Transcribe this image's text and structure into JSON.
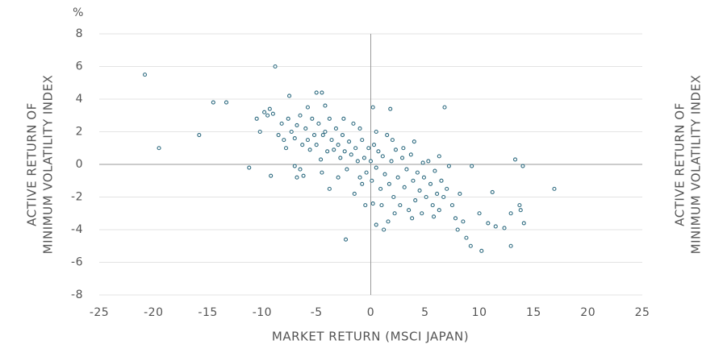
{
  "chart_data": {
    "type": "scatter",
    "unit_label": "%",
    "y_label_lines": [
      "ACTIVE RETURN OF",
      "MINIMUM VOLATILITY INDEX"
    ],
    "x_label": "MARKET RETURN (MSCI JAPAN)",
    "xlim": [
      -25,
      25
    ],
    "xticks": [
      -25,
      -20,
      -15,
      -10,
      -5,
      0,
      5,
      10,
      15,
      20,
      25
    ],
    "ylim": [
      -8,
      8
    ],
    "yticks": [
      -8,
      -6,
      -4,
      -2,
      0,
      2,
      4,
      6,
      8
    ],
    "grid": true,
    "color": "#2e6b80",
    "x": [
      -20.8,
      -19.5,
      -15.8,
      -14.5,
      -13.3,
      -11.2,
      -10.5,
      -9.3,
      -9.2,
      -9,
      -8.8,
      -7.5,
      -6.8,
      -6.2,
      -5,
      -4.5,
      -4.2,
      -3.8,
      -2.3,
      -0.5,
      0.2,
      0.5,
      1.2,
      1.8,
      6.8,
      7.2,
      9.3,
      8.5,
      8.8,
      9.2,
      10.2,
      11.2,
      12.9,
      12.9,
      13.3,
      13.7,
      14,
      14.1,
      16.9,
      10,
      10.8,
      11.5,
      12.3,
      13.8,
      7.8,
      7.5,
      8.2,
      8,
      6.3,
      6.5,
      -10.2,
      -9.8,
      -9.5,
      -8.5,
      -8.2,
      -8,
      -7.8,
      -7.6,
      -7.3,
      -7,
      -6.8,
      -6.5,
      -6.3,
      -6,
      -5.8,
      -5.6,
      -5.4,
      -5.2,
      -5,
      -4.8,
      -4.6,
      -4.4,
      -4.2,
      -4,
      -3.8,
      -3.6,
      -3.4,
      -3.2,
      -3,
      -2.8,
      -2.6,
      -2.4,
      -2.2,
      -2,
      -1.8,
      -1.6,
      -1.5,
      -1.4,
      -1.2,
      -1,
      -0.8,
      -0.6,
      -0.4,
      -0.2,
      0,
      0.1,
      0.3,
      0.5,
      0.7,
      0.9,
      1.1,
      1.3,
      1.5,
      1.7,
      1.9,
      2.1,
      2.3,
      2.5,
      2.7,
      2.9,
      3.1,
      3.3,
      3.5,
      3.7,
      3.9,
      4.1,
      4.3,
      4.5,
      4.7,
      4.9,
      5.1,
      5.3,
      5.5,
      5.7,
      5.9,
      6.1,
      6.3,
      6.5,
      6.7,
      7,
      3,
      4,
      2,
      -6.5,
      -4.5,
      1,
      2.2,
      3.8,
      -2.5,
      -1,
      -3,
      0.5,
      -0.8,
      4.8,
      5.8,
      0.2,
      -5.8,
      -7,
      1.6
    ],
    "y": [
      5.5,
      1.0,
      1.8,
      3.8,
      3.8,
      -0.2,
      2.8,
      3.4,
      -0.7,
      3.1,
      6.0,
      4.2,
      -0.8,
      -0.7,
      4.4,
      4.4,
      3.6,
      -1.5,
      -4.6,
      -2.5,
      3.5,
      -3.7,
      -4.0,
      3.4,
      3.5,
      -0.1,
      -0.1,
      -3.5,
      -4.5,
      -5.0,
      -5.3,
      -1.7,
      -5.0,
      -3.0,
      0.3,
      -2.5,
      -0.1,
      -3.6,
      -1.5,
      -3,
      -3.6,
      -3.8,
      -3.9,
      -2.8,
      -3.3,
      -2.5,
      -1.8,
      -4,
      0.5,
      -1,
      2.0,
      3.2,
      3.0,
      1.8,
      2.5,
      1.5,
      1.0,
      2.8,
      2.0,
      1.6,
      2.4,
      3.0,
      1.2,
      2.2,
      1.5,
      0.9,
      2.8,
      1.8,
      1.2,
      2.5,
      0.3,
      1.8,
      2.0,
      0.8,
      2.8,
      1.5,
      0.9,
      2.2,
      1.2,
      0.4,
      1.8,
      0.8,
      -0.3,
      1.4,
      0.6,
      2.5,
      -1.8,
      1.0,
      0.2,
      -0.8,
      1.5,
      0.4,
      -0.5,
      1.0,
      0.2,
      -1.0,
      1.2,
      -0.2,
      0.8,
      -1.5,
      0.5,
      -0.6,
      1.8,
      -1.2,
      0.2,
      -2.0,
      0.9,
      -0.8,
      -2.5,
      0.4,
      -1.4,
      -0.3,
      -2.8,
      0.6,
      -1.0,
      -2.2,
      -0.5,
      -1.6,
      -3.0,
      -0.8,
      -2.0,
      0.2,
      -1.2,
      -2.5,
      -0.4,
      -1.8,
      -2.8,
      -1.0,
      -2.0,
      -1.5,
      1.0,
      1.4,
      1.5,
      -0.3,
      -0.5,
      -2.5,
      -3.0,
      -3.3,
      2.8,
      2.2,
      -0.8,
      2.0,
      -1.2,
      0.1,
      -3.2,
      -2.4,
      3.5,
      -0.1,
      -3.5
    ]
  }
}
